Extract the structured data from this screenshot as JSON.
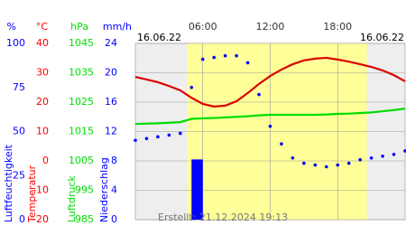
{
  "chart_data": {
    "type": "multi-axis",
    "date_start": "16.06.22",
    "date_end": "16.06.22",
    "created": "Erstellt: 21.12.2024 19:13",
    "xlim": [
      0,
      24
    ],
    "xticks": [
      {
        "value": 6,
        "label": "06:00"
      },
      {
        "value": 12,
        "label": "12:00"
      },
      {
        "value": 18,
        "label": "18:00"
      }
    ],
    "daylight": [
      4.6,
      20.6
    ],
    "grid": true,
    "axes": [
      {
        "title": "Luftfeuchtigkeit",
        "unit": "%",
        "color": "#0000ff",
        "ylim": [
          0,
          100
        ],
        "yticks": [
          0,
          25,
          50,
          75,
          100
        ]
      },
      {
        "title": "Temperatur",
        "unit": "°C",
        "color": "#ff0000",
        "ylim": [
          -20,
          40
        ],
        "yticks": [
          -20,
          -10,
          0,
          10,
          20,
          30,
          40
        ]
      },
      {
        "title": "Luftdruck",
        "unit": "hPa",
        "color": "#00dd00",
        "ylim": [
          985,
          1045
        ],
        "yticks": [
          985,
          995,
          1005,
          1015,
          1025,
          1035,
          1045
        ]
      },
      {
        "title": "Niederschlag",
        "unit": "mm/h",
        "color": "#0000ff",
        "ylim": [
          0,
          24
        ],
        "yticks": [
          0,
          4,
          8,
          12,
          16,
          20,
          24
        ]
      }
    ],
    "x": [
      0,
      1,
      2,
      3,
      4,
      5,
      6,
      7,
      8,
      9,
      10,
      11,
      12,
      13,
      14,
      15,
      16,
      17,
      18,
      19,
      20,
      21,
      22,
      23,
      24
    ],
    "series": [
      {
        "name": "Luftfeuchtigkeit",
        "type": "dots",
        "axis": 0,
        "color": "#0000ff",
        "values": [
          45,
          46,
          47,
          48,
          49,
          75,
          91,
          92,
          93,
          93,
          89,
          71,
          53,
          43,
          35,
          32,
          31,
          30,
          31,
          32,
          34,
          35,
          36,
          37,
          39
        ]
      },
      {
        "name": "Temperatur",
        "type": "line",
        "axis": 1,
        "color": "#dd0000",
        "values": [
          28.6,
          27.7,
          26.8,
          25.5,
          24.0,
          21.5,
          19.4,
          18.5,
          18.8,
          20.3,
          23.1,
          26.2,
          28.9,
          31.1,
          32.9,
          34.2,
          34.8,
          35.1,
          34.5,
          33.8,
          32.9,
          32.0,
          30.8,
          29.2,
          27.1
        ]
      },
      {
        "name": "Luftdruck",
        "type": "line",
        "axis": 2,
        "color": "#00dd00",
        "values": [
          1017.6,
          1017.7,
          1017.8,
          1018.0,
          1018.2,
          1019.3,
          1019.5,
          1019.6,
          1019.8,
          1020.0,
          1020.2,
          1020.5,
          1020.7,
          1020.7,
          1020.7,
          1020.7,
          1020.7,
          1020.8,
          1021.0,
          1021.1,
          1021.3,
          1021.5,
          1021.9,
          1022.3,
          1022.8
        ]
      },
      {
        "name": "Niederschlag",
        "type": "bar",
        "axis": 3,
        "color": "#0000ff",
        "values": [
          0,
          0,
          0,
          0,
          0,
          8.2,
          0,
          0,
          0,
          0,
          0,
          0,
          0,
          0,
          0,
          0,
          0,
          0,
          0,
          0,
          0,
          0,
          0,
          0,
          0
        ]
      }
    ]
  }
}
